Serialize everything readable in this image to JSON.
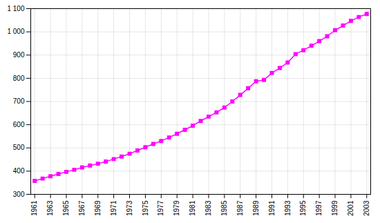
{
  "chart_data": {
    "type": "line",
    "x": [
      1961,
      1962,
      1963,
      1964,
      1965,
      1966,
      1967,
      1968,
      1969,
      1970,
      1971,
      1972,
      1973,
      1974,
      1975,
      1976,
      1977,
      1978,
      1979,
      1980,
      1981,
      1982,
      1983,
      1984,
      1985,
      1986,
      1987,
      1988,
      1989,
      1990,
      1991,
      1992,
      1993,
      1994,
      1995,
      1996,
      1997,
      1998,
      1999,
      2000,
      2001,
      2002,
      2003
    ],
    "values": [
      358,
      368,
      378,
      388,
      397,
      406,
      416,
      424,
      432,
      441,
      452,
      463,
      475,
      489,
      503,
      517,
      530,
      545,
      561,
      578,
      596,
      616,
      635,
      653,
      674,
      700,
      728,
      757,
      787,
      793,
      823,
      844,
      868,
      904,
      921,
      940,
      960,
      981,
      1007,
      1027,
      1047,
      1064,
      1077
    ],
    "color": "#FF00FF",
    "marker": "square",
    "xlim": [
      1960.5,
      2003.5
    ],
    "xticks": [
      1961,
      1963,
      1965,
      1967,
      1969,
      1971,
      1973,
      1975,
      1977,
      1979,
      1981,
      1983,
      1985,
      1987,
      1989,
      1991,
      1993,
      1995,
      1997,
      1999,
      2001,
      2003
    ],
    "ylim": [
      300,
      1100
    ],
    "yticks": [
      300,
      400,
      500,
      600,
      700,
      800,
      900,
      {
        "value": 1000,
        "label": "1 000"
      },
      {
        "value": 1100,
        "label": "1 100"
      }
    ],
    "grid": true
  }
}
